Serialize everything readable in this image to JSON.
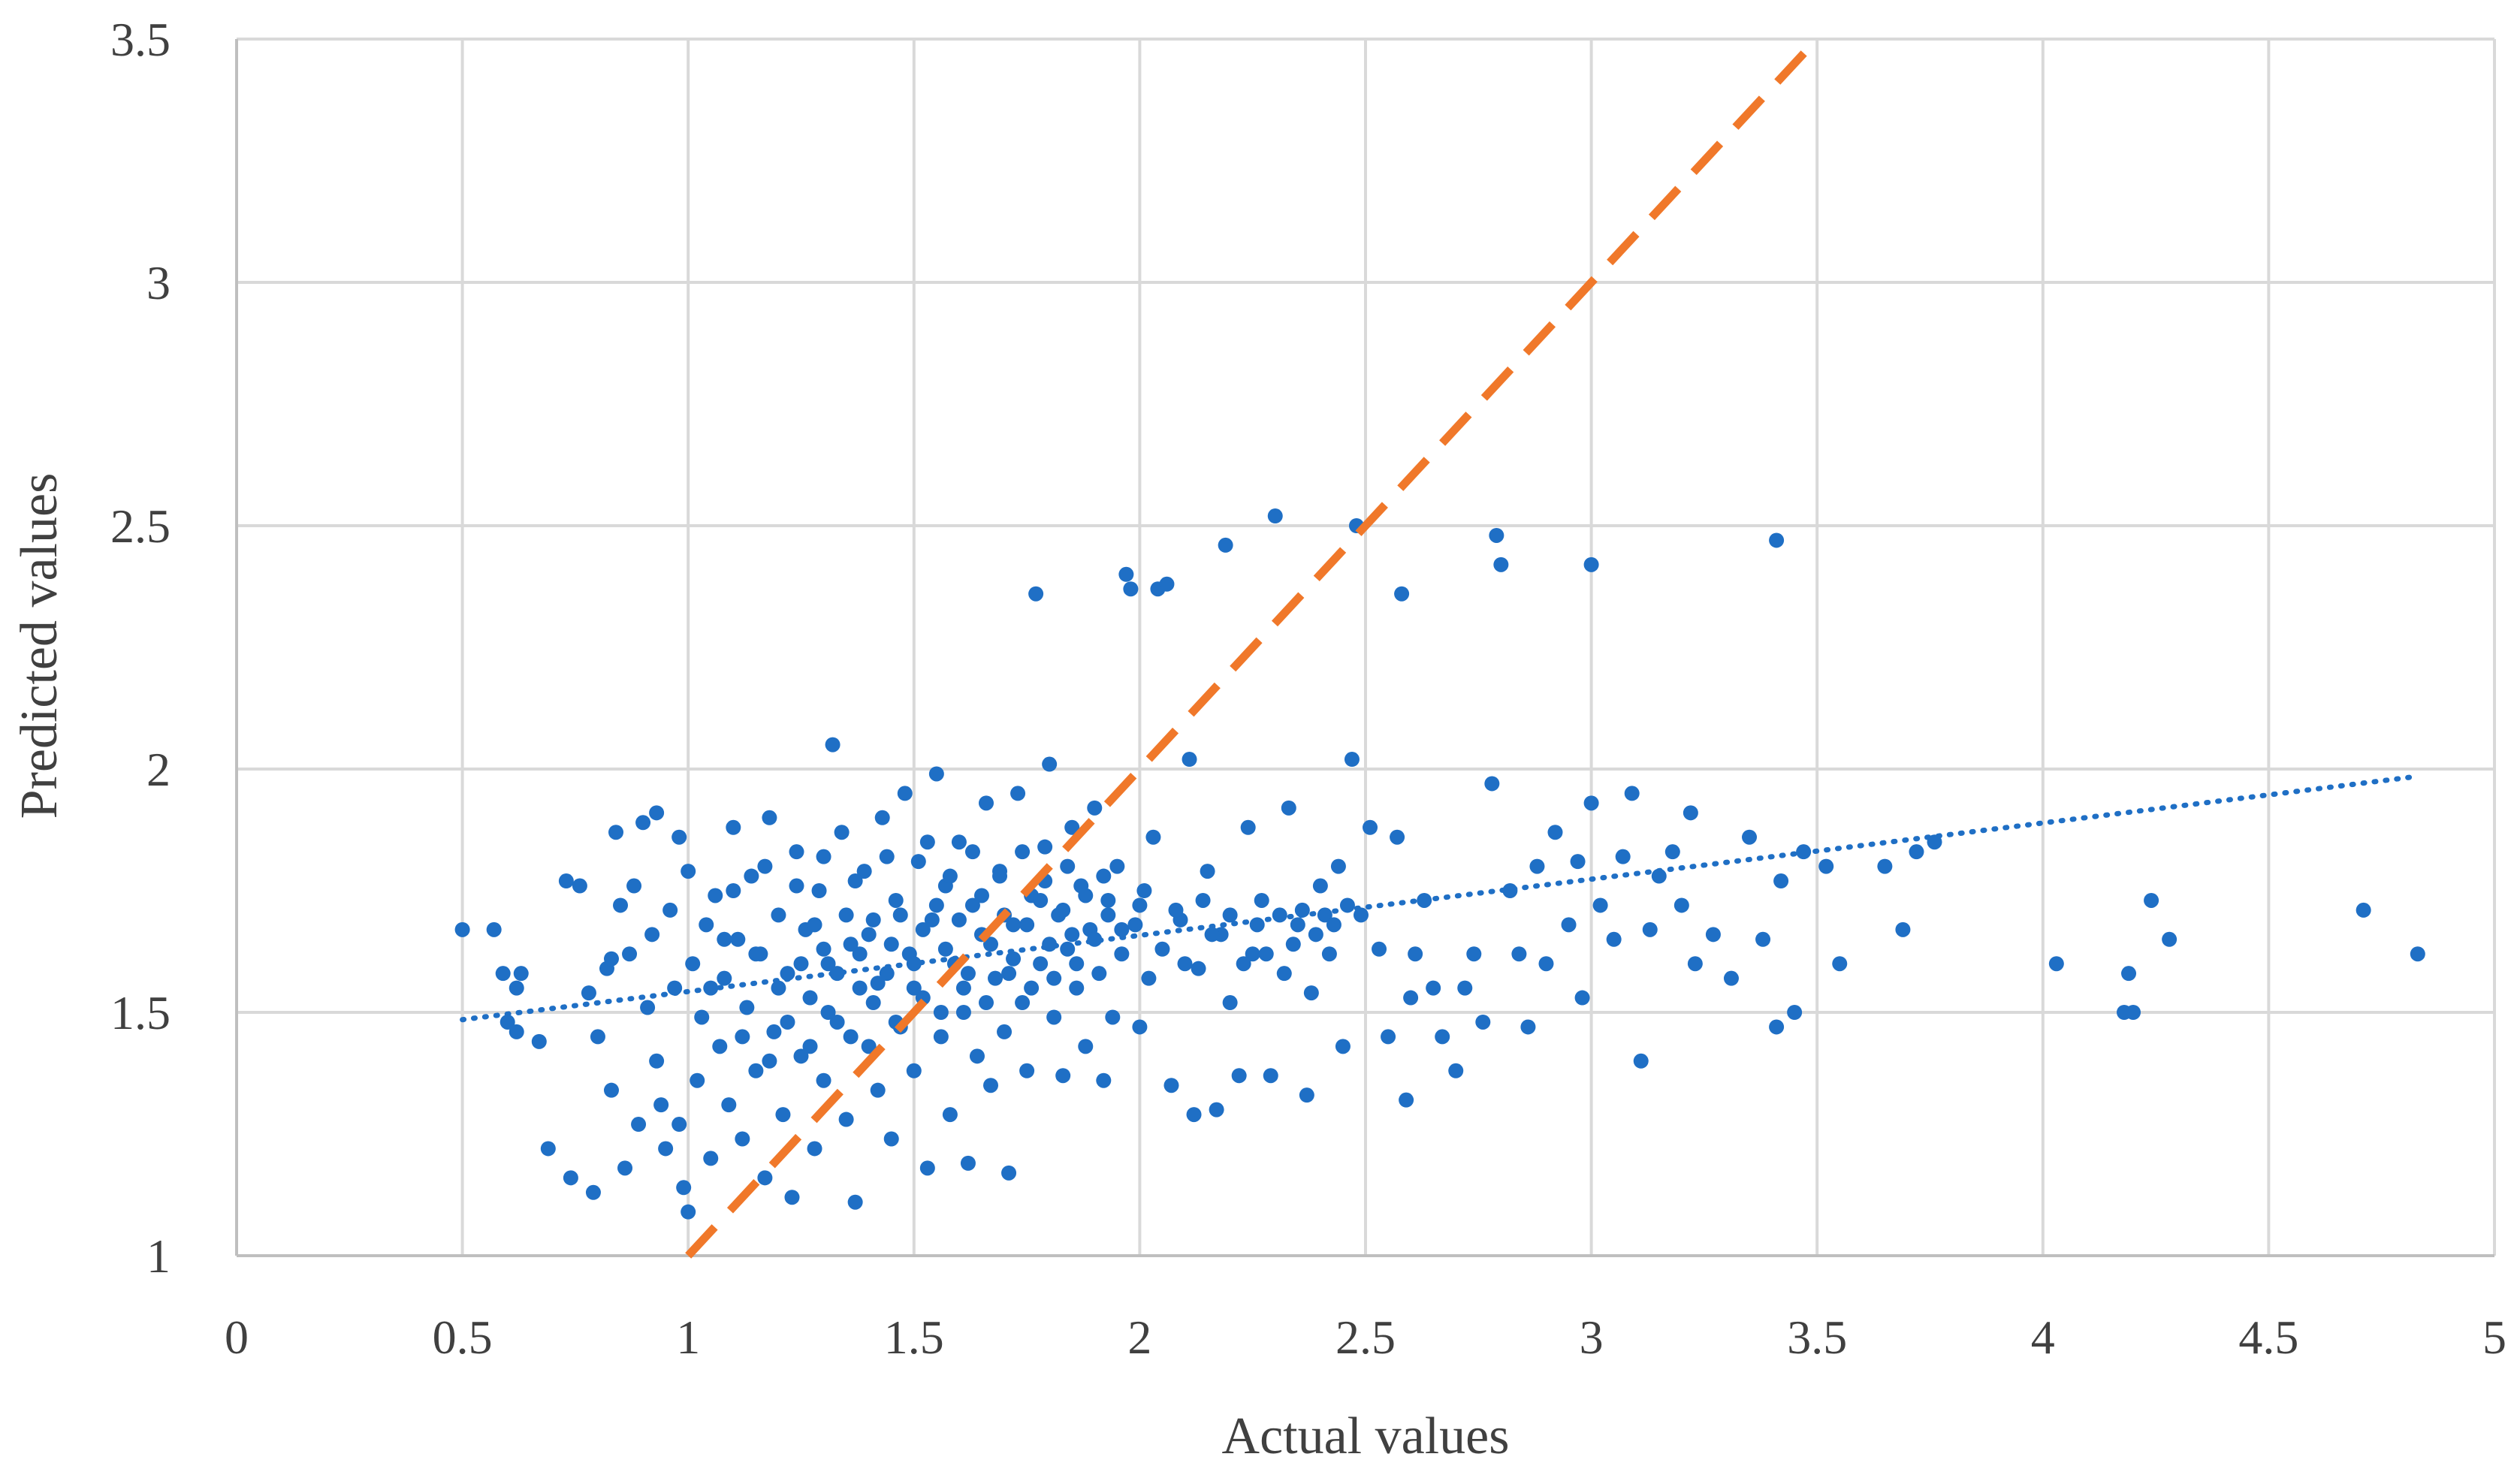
{
  "chart_data": {
    "type": "scatter",
    "title": "",
    "xlabel": "Actual values",
    "ylabel": "Predicted values",
    "xlim": [
      0,
      5
    ],
    "ylim": [
      1,
      3.5
    ],
    "x_ticks": [
      "0",
      "0.5",
      "1",
      "1.5",
      "2",
      "2.5",
      "3",
      "3.5",
      "4",
      "4.5",
      "5"
    ],
    "y_ticks": [
      "1",
      "1.5",
      "2",
      "2.5",
      "3",
      "3.5"
    ],
    "grid": true,
    "legend": "none",
    "colors": {
      "points": "#1F6FC5",
      "ideal_line": "#F0782A",
      "grid": "#D9D9D9",
      "axis": "#BFBFBF",
      "text": "#404040"
    },
    "ideal_line": {
      "style": "dashed",
      "x": [
        1,
        3.5
      ],
      "y": [
        1,
        3.5
      ]
    },
    "trendline": {
      "style": "dotted",
      "x": [
        0.5,
        4.83
      ],
      "y": [
        1.485,
        1.985
      ]
    },
    "series": [
      {
        "points": [
          [
            0.5,
            1.67
          ],
          [
            0.57,
            1.67
          ],
          [
            0.59,
            1.58
          ],
          [
            0.6,
            1.48
          ],
          [
            0.62,
            1.55
          ],
          [
            0.63,
            1.58
          ],
          [
            0.62,
            1.46
          ],
          [
            0.67,
            1.44
          ],
          [
            0.69,
            1.22
          ],
          [
            0.73,
            1.77
          ],
          [
            0.74,
            1.16
          ],
          [
            0.76,
            1.76
          ],
          [
            0.78,
            1.54
          ],
          [
            0.79,
            1.13
          ],
          [
            0.8,
            1.45
          ],
          [
            0.82,
            1.59
          ],
          [
            0.83,
            1.34
          ],
          [
            0.83,
            1.61
          ],
          [
            0.84,
            1.87
          ],
          [
            0.85,
            1.72
          ],
          [
            0.86,
            1.18
          ],
          [
            0.87,
            1.62
          ],
          [
            0.88,
            1.76
          ],
          [
            0.89,
            1.27
          ],
          [
            0.9,
            1.89
          ],
          [
            0.91,
            1.51
          ],
          [
            0.92,
            1.66
          ],
          [
            0.93,
            1.91
          ],
          [
            0.93,
            1.4
          ],
          [
            0.94,
            1.31
          ],
          [
            0.95,
            1.22
          ],
          [
            0.96,
            1.71
          ],
          [
            0.97,
            1.55
          ],
          [
            0.98,
            1.86
          ],
          [
            0.98,
            1.27
          ],
          [
            0.99,
            1.14
          ],
          [
            1.0,
            1.09
          ],
          [
            1.0,
            1.79
          ],
          [
            1.01,
            1.6
          ],
          [
            1.02,
            1.36
          ],
          [
            1.03,
            1.49
          ],
          [
            1.04,
            1.68
          ],
          [
            1.05,
            1.2
          ],
          [
            1.06,
            1.74
          ],
          [
            1.07,
            1.43
          ],
          [
            1.08,
            1.57
          ],
          [
            1.09,
            1.31
          ],
          [
            1.1,
            1.88
          ],
          [
            1.11,
            1.65
          ],
          [
            1.12,
            1.24
          ],
          [
            1.13,
            1.51
          ],
          [
            1.14,
            1.78
          ],
          [
            1.15,
            1.38
          ],
          [
            1.16,
            1.62
          ],
          [
            1.17,
            1.16
          ],
          [
            1.18,
            1.9
          ],
          [
            1.19,
            1.46
          ],
          [
            1.2,
            1.7
          ],
          [
            1.21,
            1.29
          ],
          [
            1.22,
            1.58
          ],
          [
            1.23,
            1.12
          ],
          [
            1.24,
            1.83
          ],
          [
            1.25,
            1.41
          ],
          [
            1.26,
            1.67
          ],
          [
            1.27,
            1.53
          ],
          [
            1.28,
            1.22
          ],
          [
            1.29,
            1.75
          ],
          [
            1.3,
            1.36
          ],
          [
            1.31,
            1.6
          ],
          [
            1.32,
            2.05
          ],
          [
            1.33,
            1.48
          ],
          [
            1.34,
            1.87
          ],
          [
            1.35,
            1.28
          ],
          [
            1.36,
            1.64
          ],
          [
            1.37,
            1.11
          ],
          [
            1.38,
            1.55
          ],
          [
            1.39,
            1.79
          ],
          [
            1.4,
            1.43
          ],
          [
            1.41,
            1.69
          ],
          [
            1.42,
            1.34
          ],
          [
            1.43,
            1.9
          ],
          [
            1.44,
            1.58
          ],
          [
            1.45,
            1.24
          ],
          [
            1.46,
            1.73
          ],
          [
            1.47,
            1.47
          ],
          [
            1.48,
            1.95
          ],
          [
            1.49,
            1.62
          ],
          [
            1.5,
            1.38
          ],
          [
            1.51,
            1.81
          ],
          [
            1.52,
            1.53
          ],
          [
            1.53,
            1.18
          ],
          [
            1.54,
            1.69
          ],
          [
            1.55,
            1.99
          ],
          [
            1.56,
            1.45
          ],
          [
            1.57,
            1.76
          ],
          [
            1.58,
            1.29
          ],
          [
            1.59,
            1.6
          ],
          [
            1.6,
            1.85
          ],
          [
            1.61,
            1.5
          ],
          [
            1.62,
            1.19
          ],
          [
            1.63,
            1.72
          ],
          [
            1.64,
            1.41
          ],
          [
            1.65,
            1.66
          ],
          [
            1.66,
            1.93
          ],
          [
            1.67,
            1.35
          ],
          [
            1.68,
            1.57
          ],
          [
            1.69,
            1.79
          ],
          [
            1.7,
            1.46
          ],
          [
            1.71,
            1.17
          ],
          [
            1.72,
            1.68
          ],
          [
            1.73,
            1.95
          ],
          [
            1.74,
            1.52
          ],
          [
            1.75,
            1.38
          ],
          [
            1.76,
            1.74
          ],
          [
            1.77,
            2.36
          ],
          [
            1.78,
            1.6
          ],
          [
            1.79,
            1.84
          ],
          [
            1.8,
            2.01
          ],
          [
            1.81,
            1.49
          ],
          [
            1.82,
            1.7
          ],
          [
            1.83,
            1.37
          ],
          [
            1.84,
            1.63
          ],
          [
            1.85,
            1.88
          ],
          [
            1.86,
            1.55
          ],
          [
            1.87,
            1.76
          ],
          [
            1.88,
            1.43
          ],
          [
            1.89,
            1.67
          ],
          [
            1.9,
            1.92
          ],
          [
            1.91,
            1.58
          ],
          [
            1.92,
            1.36
          ],
          [
            1.93,
            1.73
          ],
          [
            1.94,
            1.49
          ],
          [
            1.95,
            1.8
          ],
          [
            1.96,
            1.62
          ],
          [
            1.97,
            2.4
          ],
          [
            1.98,
            2.37
          ],
          [
            1.99,
            1.68
          ],
          [
            2.0,
            1.47
          ],
          [
            2.01,
            1.75
          ],
          [
            2.02,
            1.57
          ],
          [
            2.03,
            1.86
          ],
          [
            2.04,
            2.37
          ],
          [
            2.06,
            2.38
          ],
          [
            2.07,
            1.35
          ],
          [
            2.09,
            1.69
          ],
          [
            2.11,
            2.02
          ],
          [
            2.12,
            1.29
          ],
          [
            2.13,
            1.59
          ],
          [
            2.15,
            1.79
          ],
          [
            2.17,
            1.3
          ],
          [
            2.18,
            1.66
          ],
          [
            2.19,
            2.46
          ],
          [
            2.2,
            1.52
          ],
          [
            2.22,
            1.37
          ],
          [
            2.24,
            1.88
          ],
          [
            2.25,
            1.62
          ],
          [
            2.27,
            1.73
          ],
          [
            2.29,
            1.37
          ],
          [
            2.3,
            2.52
          ],
          [
            2.32,
            1.58
          ],
          [
            2.33,
            1.92
          ],
          [
            2.35,
            1.68
          ],
          [
            2.37,
            1.33
          ],
          [
            2.38,
            1.54
          ],
          [
            2.4,
            1.76
          ],
          [
            2.42,
            1.62
          ],
          [
            2.44,
            1.8
          ],
          [
            2.45,
            1.43
          ],
          [
            2.47,
            2.02
          ],
          [
            2.48,
            2.5
          ],
          [
            2.49,
            1.7
          ],
          [
            2.51,
            1.88
          ],
          [
            2.53,
            1.63
          ],
          [
            2.55,
            1.45
          ],
          [
            2.57,
            1.86
          ],
          [
            2.58,
            2.36
          ],
          [
            2.59,
            1.32
          ],
          [
            2.6,
            1.53
          ],
          [
            2.61,
            1.62
          ],
          [
            2.63,
            1.73
          ],
          [
            2.65,
            1.55
          ],
          [
            2.67,
            1.45
          ],
          [
            2.7,
            1.38
          ],
          [
            2.72,
            1.55
          ],
          [
            2.74,
            1.62
          ],
          [
            2.76,
            1.48
          ],
          [
            2.78,
            1.97
          ],
          [
            2.79,
            2.48
          ],
          [
            2.8,
            2.42
          ],
          [
            2.82,
            1.75
          ],
          [
            2.84,
            1.62
          ],
          [
            2.86,
            1.47
          ],
          [
            2.88,
            1.8
          ],
          [
            2.9,
            1.6
          ],
          [
            2.92,
            1.87
          ],
          [
            2.95,
            1.68
          ],
          [
            2.97,
            1.81
          ],
          [
            2.98,
            1.53
          ],
          [
            3.0,
            2.42
          ],
          [
            3.0,
            1.93
          ],
          [
            3.02,
            1.72
          ],
          [
            3.05,
            1.65
          ],
          [
            3.07,
            1.82
          ],
          [
            3.09,
            1.95
          ],
          [
            3.11,
            1.4
          ],
          [
            3.13,
            1.67
          ],
          [
            3.15,
            1.78
          ],
          [
            3.18,
            1.83
          ],
          [
            3.2,
            1.72
          ],
          [
            3.22,
            1.91
          ],
          [
            3.23,
            1.6
          ],
          [
            3.27,
            1.66
          ],
          [
            3.31,
            1.57
          ],
          [
            3.35,
            1.86
          ],
          [
            3.38,
            1.65
          ],
          [
            3.41,
            1.47
          ],
          [
            3.41,
            2.47
          ],
          [
            3.42,
            1.77
          ],
          [
            3.45,
            1.5
          ],
          [
            3.47,
            1.83
          ],
          [
            3.52,
            1.8
          ],
          [
            3.55,
            1.6
          ],
          [
            3.65,
            1.8
          ],
          [
            3.69,
            1.67
          ],
          [
            3.72,
            1.83
          ],
          [
            3.76,
            1.85
          ],
          [
            4.03,
            1.6
          ],
          [
            4.18,
            1.5
          ],
          [
            4.19,
            1.58
          ],
          [
            4.2,
            1.5
          ],
          [
            4.24,
            1.73
          ],
          [
            4.28,
            1.65
          ],
          [
            4.71,
            1.71
          ],
          [
            4.83,
            1.62
          ],
          [
            1.15,
            1.62
          ],
          [
            1.2,
            1.55
          ],
          [
            1.25,
            1.6
          ],
          [
            1.28,
            1.68
          ],
          [
            1.3,
            1.63
          ],
          [
            1.33,
            1.58
          ],
          [
            1.35,
            1.7
          ],
          [
            1.38,
            1.62
          ],
          [
            1.4,
            1.66
          ],
          [
            1.42,
            1.56
          ],
          [
            1.45,
            1.64
          ],
          [
            1.47,
            1.7
          ],
          [
            1.5,
            1.6
          ],
          [
            1.52,
            1.67
          ],
          [
            1.55,
            1.72
          ],
          [
            1.57,
            1.63
          ],
          [
            1.6,
            1.69
          ],
          [
            1.62,
            1.58
          ],
          [
            1.65,
            1.74
          ],
          [
            1.67,
            1.64
          ],
          [
            1.7,
            1.7
          ],
          [
            1.72,
            1.61
          ],
          [
            1.75,
            1.68
          ],
          [
            1.78,
            1.73
          ],
          [
            1.8,
            1.64
          ],
          [
            1.83,
            1.71
          ],
          [
            1.85,
            1.66
          ],
          [
            1.88,
            1.74
          ],
          [
            1.9,
            1.65
          ],
          [
            1.93,
            1.7
          ],
          [
            1.96,
            1.67
          ],
          [
            2.0,
            1.72
          ],
          [
            1.12,
            1.45
          ],
          [
            1.18,
            1.4
          ],
          [
            1.22,
            1.48
          ],
          [
            1.27,
            1.43
          ],
          [
            1.31,
            1.5
          ],
          [
            1.36,
            1.45
          ],
          [
            1.41,
            1.52
          ],
          [
            1.46,
            1.48
          ],
          [
            1.5,
            1.55
          ],
          [
            1.56,
            1.5
          ],
          [
            1.61,
            1.55
          ],
          [
            1.66,
            1.52
          ],
          [
            1.71,
            1.58
          ],
          [
            1.76,
            1.55
          ],
          [
            1.81,
            1.57
          ],
          [
            1.86,
            1.6
          ],
          [
            1.05,
            1.55
          ],
          [
            1.08,
            1.65
          ],
          [
            1.1,
            1.75
          ],
          [
            1.17,
            1.8
          ],
          [
            1.24,
            1.76
          ],
          [
            1.3,
            1.82
          ],
          [
            1.37,
            1.77
          ],
          [
            1.44,
            1.82
          ],
          [
            1.53,
            1.85
          ],
          [
            1.58,
            1.78
          ],
          [
            1.63,
            1.83
          ],
          [
            1.69,
            1.78
          ],
          [
            1.74,
            1.83
          ],
          [
            1.79,
            1.77
          ],
          [
            1.84,
            1.8
          ],
          [
            1.92,
            1.78
          ],
          [
            2.05,
            1.63
          ],
          [
            2.08,
            1.71
          ],
          [
            2.1,
            1.6
          ],
          [
            2.14,
            1.73
          ],
          [
            2.16,
            1.66
          ],
          [
            2.2,
            1.7
          ],
          [
            2.23,
            1.6
          ],
          [
            2.26,
            1.68
          ],
          [
            2.28,
            1.62
          ],
          [
            2.31,
            1.7
          ],
          [
            2.34,
            1.64
          ],
          [
            2.36,
            1.71
          ],
          [
            2.39,
            1.66
          ],
          [
            2.41,
            1.7
          ],
          [
            2.43,
            1.68
          ],
          [
            2.46,
            1.72
          ]
        ]
      }
    ]
  }
}
